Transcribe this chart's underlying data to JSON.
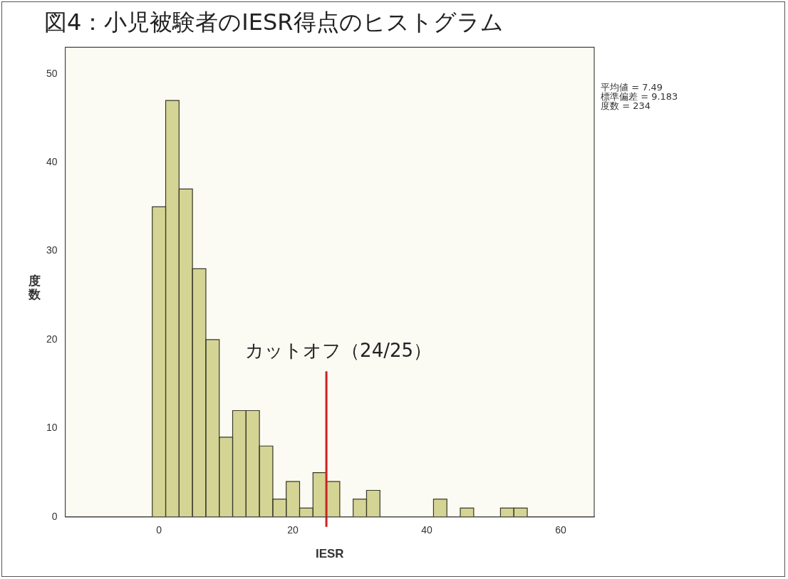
{
  "chart_data": {
    "type": "histogram",
    "title": "図4：小児被験者のIESR得点のヒストグラム",
    "xlabel": "IESR",
    "ylabel": "度数",
    "bins": [
      -1,
      1,
      3,
      5,
      7,
      9,
      11,
      13,
      15,
      17,
      19,
      21,
      23,
      25,
      27,
      29,
      31,
      33,
      35,
      37,
      39,
      41,
      43,
      45,
      47,
      49,
      51,
      53,
      55
    ],
    "values": [
      35,
      47,
      37,
      28,
      20,
      9,
      12,
      12,
      8,
      2,
      4,
      1,
      5,
      4,
      0,
      2,
      3,
      0,
      0,
      0,
      0,
      2,
      0,
      1,
      0,
      0,
      1,
      1
    ],
    "color": "#d4d595",
    "xlim": [
      -14,
      65
    ],
    "xticks": [
      0,
      20,
      40,
      60
    ],
    "ylim": [
      0,
      53
    ],
    "yticks": [
      0,
      10,
      20,
      30,
      40,
      50
    ],
    "grid": false,
    "legend": false,
    "ref_lines": [
      {
        "axis": "x",
        "value": 25,
        "label": "カットオフ（24/25）",
        "color": "#cc2222"
      }
    ],
    "annotations": [
      "平均値 = 7.49",
      "標準偏差 = 9.183",
      "度数 = 234"
    ]
  }
}
